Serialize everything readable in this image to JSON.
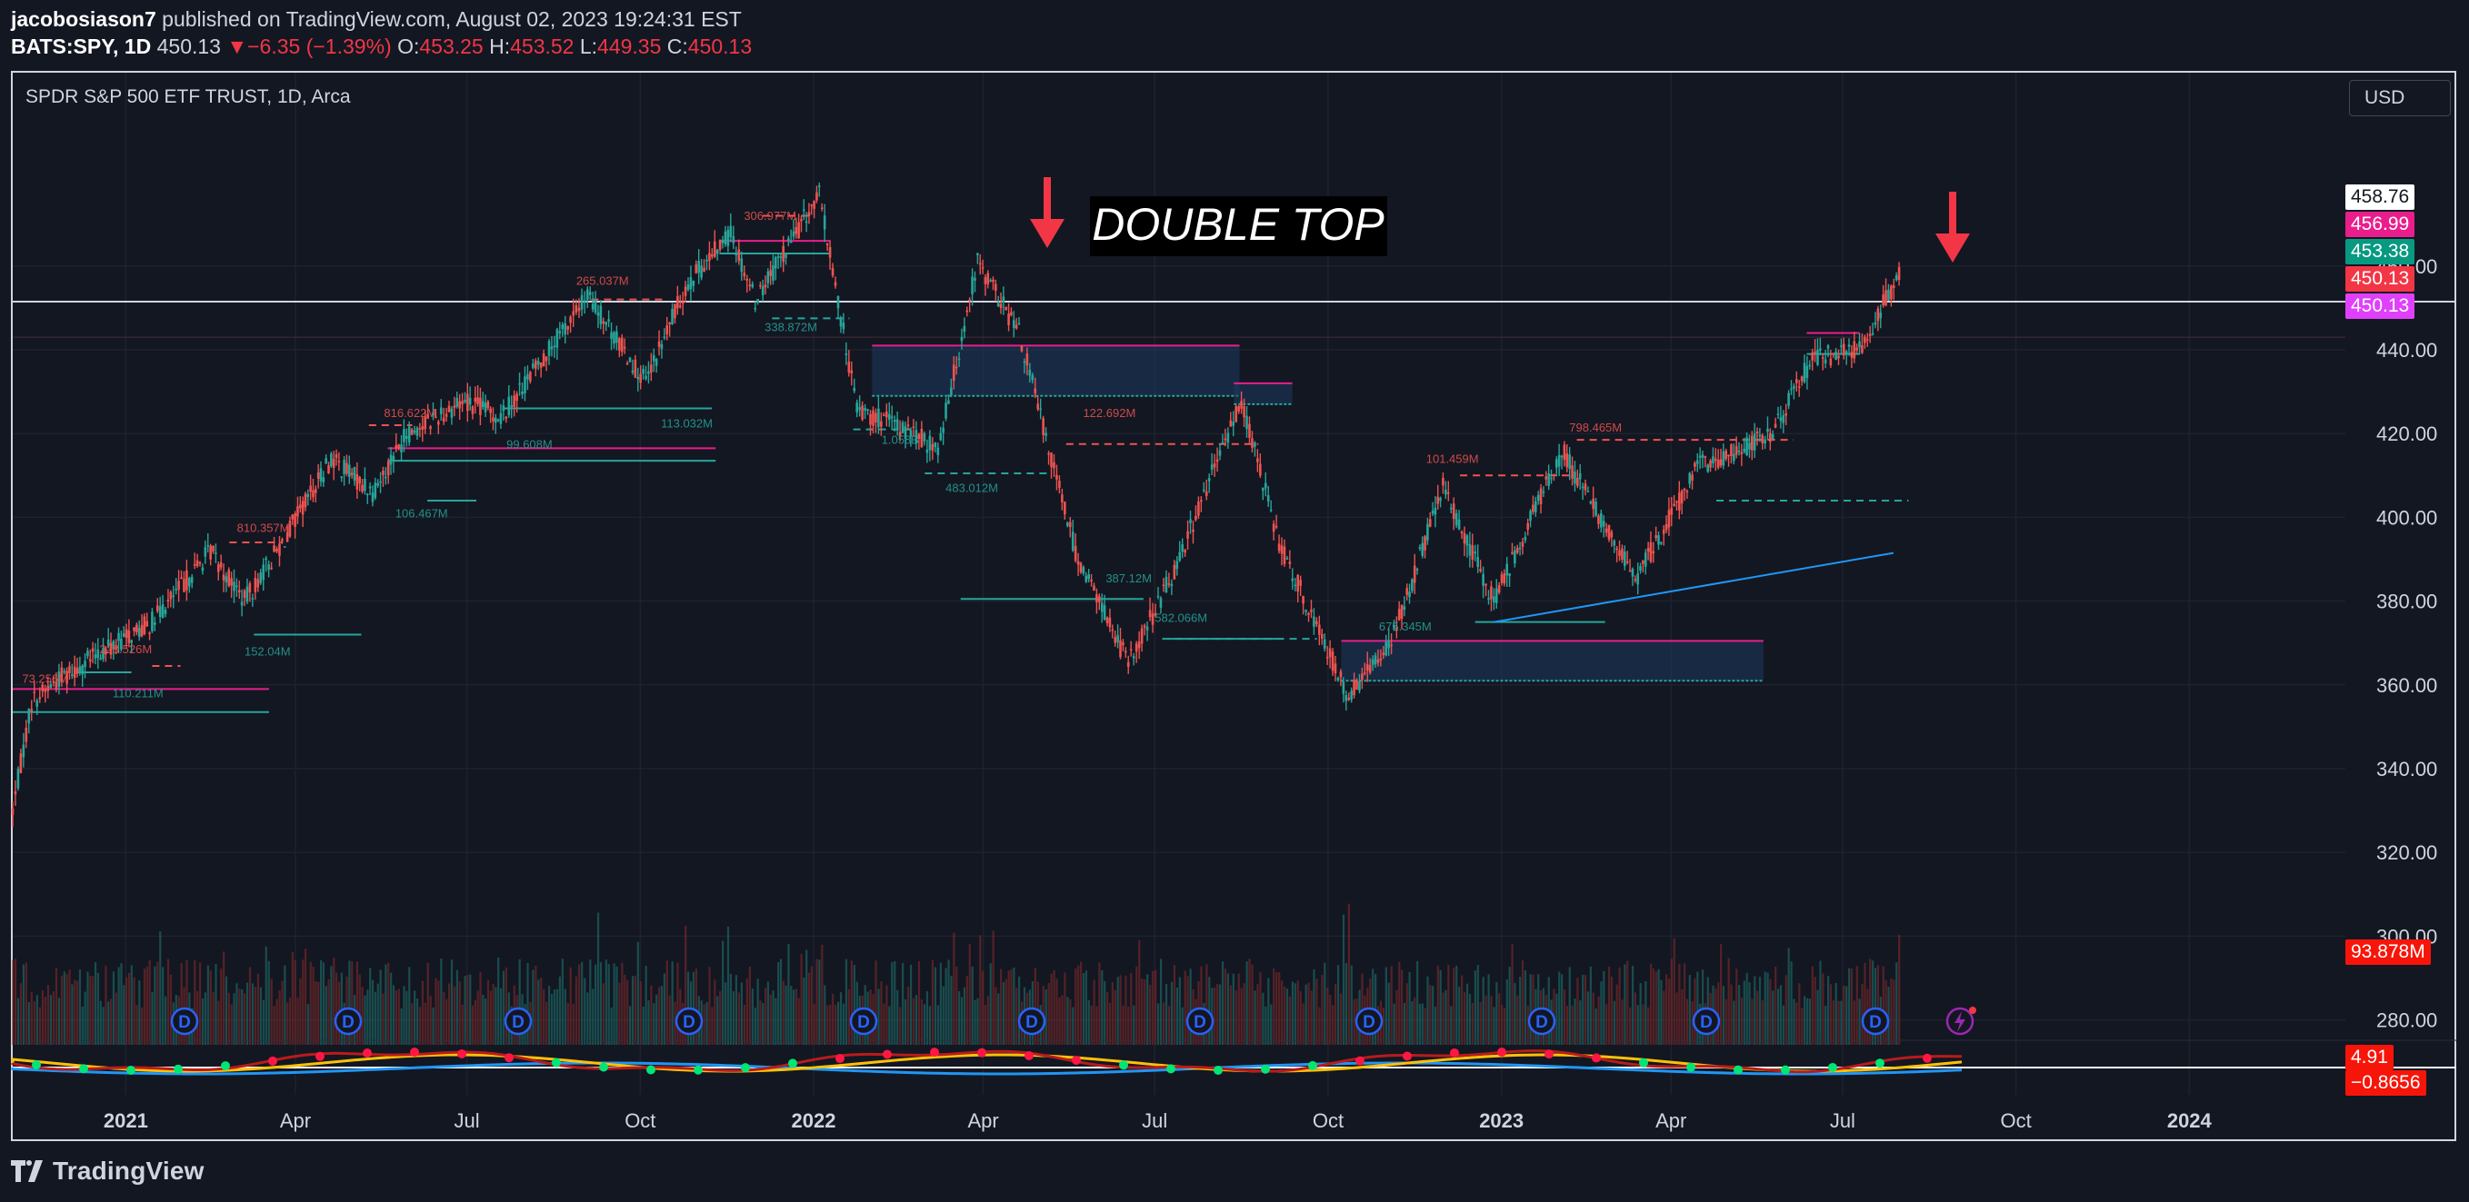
{
  "header": {
    "user": "jacobosiason7",
    "published": "published on TradingView.com, August 02, 2023 19:24:31 EST",
    "symbol": "BATS:SPY, 1D",
    "last": "450.13",
    "change_arrow": "▼",
    "change": "−6.35 (−1.39%)",
    "o_label": "O:",
    "o": "453.25",
    "h_label": "H:",
    "h": "453.52",
    "l_label": "L:",
    "l": "449.35",
    "c_label": "C:",
    "c": "450.13"
  },
  "chart_title": "SPDR S&P 500 ETF TRUST, 1D, Arca",
  "currency_button": "USD",
  "branding": "TradingView",
  "annotation_text": "DOUBLE TOP",
  "colors": {
    "background": "#131722",
    "up": "#26a69a",
    "down": "#ef5350",
    "accent_red": "#f23645",
    "magenta": "#e91e8c",
    "zone_fill": "#1e3a5f",
    "trend_line": "#2196f3"
  },
  "price_tags": [
    {
      "text": "458.76",
      "bg": "#ffffff",
      "fg": "#131722"
    },
    {
      "text": "456.99",
      "bg": "#e91e8c",
      "fg": "#ffffff"
    },
    {
      "text": "453.38",
      "bg": "#089981",
      "fg": "#ffffff"
    },
    {
      "text": "450.13",
      "bg": "#f23645",
      "fg": "#ffffff"
    },
    {
      "text": "450.13",
      "bg": "#e040fb",
      "fg": "#ffffff"
    }
  ],
  "volume_tag": "93.878M",
  "osc_tags": [
    "4.91",
    "−0.8656"
  ],
  "volume_labels": [
    {
      "text": "73.256M",
      "color": "#ef5350"
    },
    {
      "text": "110.211M",
      "color": "#26a69a"
    },
    {
      "text": "228.526M",
      "color": "#ef5350"
    },
    {
      "text": "810.357M",
      "color": "#ef5350"
    },
    {
      "text": "152.04M",
      "color": "#26a69a"
    },
    {
      "text": "816.622M",
      "color": "#ef5350"
    },
    {
      "text": "106.467M",
      "color": "#26a69a"
    },
    {
      "text": "99.608M",
      "color": "#26a69a"
    },
    {
      "text": "265.037M",
      "color": "#ef5350"
    },
    {
      "text": "113.032M",
      "color": "#26a69a"
    },
    {
      "text": "306.977M",
      "color": "#ef5350"
    },
    {
      "text": "338.872M",
      "color": "#26a69a"
    },
    {
      "text": "1.058B",
      "color": "#26a69a"
    },
    {
      "text": "483.012M",
      "color": "#26a69a"
    },
    {
      "text": "122.692M",
      "color": "#ef5350"
    },
    {
      "text": "387.12M",
      "color": "#26a69a"
    },
    {
      "text": "582.066M",
      "color": "#26a69a"
    },
    {
      "text": "101.459M",
      "color": "#ef5350"
    },
    {
      "text": "798.465M",
      "color": "#ef5350"
    },
    {
      "text": "675.345M",
      "color": "#26a69a"
    }
  ],
  "chart_data": {
    "type": "candlestick",
    "x_ticks": [
      "2021",
      "Apr",
      "Jul",
      "Oct",
      "2022",
      "Apr",
      "Jul",
      "Oct",
      "2023",
      "Apr",
      "Jul",
      "Oct",
      "2024"
    ],
    "y_ticks": [
      280,
      300,
      320,
      340,
      360,
      380,
      400,
      420,
      440,
      460
    ],
    "ylim": [
      271,
      480
    ],
    "grid": true,
    "dividend_markers": 11,
    "price_path": [
      [
        "2020-11-02",
        330
      ],
      [
        "2020-11-12",
        356
      ],
      [
        "2020-11-28",
        362
      ],
      [
        "2020-12-20",
        368
      ],
      [
        "2021-01-15",
        375
      ],
      [
        "2021-02-15",
        392
      ],
      [
        "2021-03-05",
        380
      ],
      [
        "2021-03-25",
        394
      ],
      [
        "2021-04-20",
        414
      ],
      [
        "2021-05-12",
        406
      ],
      [
        "2021-05-30",
        420
      ],
      [
        "2021-06-30",
        428
      ],
      [
        "2021-07-19",
        424
      ],
      [
        "2021-08-25",
        447
      ],
      [
        "2021-09-03",
        453
      ],
      [
        "2021-10-04",
        432
      ],
      [
        "2021-10-25",
        455
      ],
      [
        "2021-11-18",
        468
      ],
      [
        "2021-12-01",
        452
      ],
      [
        "2021-12-20",
        466
      ],
      [
        "2022-01-04",
        477
      ],
      [
        "2022-01-24",
        426
      ],
      [
        "2022-02-23",
        420
      ],
      [
        "2022-03-08",
        416
      ],
      [
        "2022-03-29",
        461
      ],
      [
        "2022-04-20",
        444
      ],
      [
        "2022-05-20",
        392
      ],
      [
        "2022-06-17",
        365
      ],
      [
        "2022-07-10",
        386
      ],
      [
        "2022-08-16",
        428
      ],
      [
        "2022-09-05",
        394
      ],
      [
        "2022-10-12",
        357
      ],
      [
        "2022-11-05",
        372
      ],
      [
        "2022-12-01",
        407
      ],
      [
        "2022-12-28",
        380
      ],
      [
        "2023-02-02",
        416
      ],
      [
        "2023-03-13",
        385
      ],
      [
        "2023-04-15",
        412
      ],
      [
        "2023-05-25",
        420
      ],
      [
        "2023-06-15",
        438
      ],
      [
        "2023-07-10",
        440
      ],
      [
        "2023-07-31",
        458
      ],
      [
        "2023-08-02",
        450
      ]
    ]
  }
}
